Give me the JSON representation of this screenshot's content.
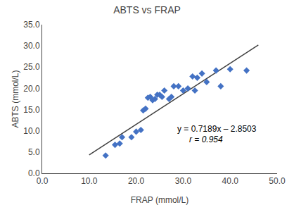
{
  "chart_data": {
    "type": "scatter",
    "title": "ABTS vs FRAP",
    "xlabel": "FRAP (mmol/L)",
    "ylabel": "ABTS (mmol/L)",
    "xlim": [
      0.0,
      50.0
    ],
    "ylim": [
      0.0,
      35.0
    ],
    "xticks": [
      {
        "value": 0,
        "label": "0.0"
      },
      {
        "value": 10,
        "label": "10.0"
      },
      {
        "value": 20,
        "label": "20.0"
      },
      {
        "value": 30,
        "label": "30.0"
      },
      {
        "value": 40,
        "label": "40.0"
      },
      {
        "value": 50,
        "label": "50.0"
      }
    ],
    "yticks": [
      {
        "value": 0,
        "label": "0.0"
      },
      {
        "value": 5,
        "label": "5.0"
      },
      {
        "value": 10,
        "label": "10.0"
      },
      {
        "value": 15,
        "label": "15.0"
      },
      {
        "value": 20,
        "label": "20.0"
      },
      {
        "value": 25,
        "label": "25.0"
      },
      {
        "value": 30,
        "label": "30.0"
      },
      {
        "value": 35,
        "label": "35.0"
      }
    ],
    "grid": false,
    "series": [
      {
        "type": "scatter",
        "color": "#4472C4",
        "marker": "diamond",
        "x": [
          13.5,
          15.5,
          16.5,
          17.0,
          19.0,
          20.0,
          21.0,
          21.5,
          22.0,
          22.5,
          23.0,
          23.5,
          24.0,
          24.5,
          25.0,
          25.5,
          26.0,
          27.0,
          27.5,
          28.0,
          29.0,
          30.0,
          31.0,
          32.0,
          32.5,
          33.0,
          34.0,
          35.0,
          37.0,
          38.0,
          40.0,
          43.5
        ],
        "values": [
          4.2,
          6.7,
          7.0,
          8.5,
          8.5,
          9.8,
          10.2,
          14.8,
          15.2,
          17.8,
          18.0,
          17.2,
          17.5,
          18.5,
          18.5,
          18.0,
          19.5,
          17.5,
          18.0,
          20.5,
          20.5,
          19.5,
          20.0,
          22.8,
          19.5,
          22.5,
          23.5,
          21.5,
          24.2,
          20.5,
          24.5,
          24.2
        ]
      },
      {
        "type": "line",
        "color": "#404040",
        "line_style": "solid",
        "x": [
          10.0,
          46.0
        ],
        "values": [
          4.3387,
          30.2191
        ]
      }
    ],
    "annotations": [
      "y = 0.7189x – 2.8503",
      "r = 0.954"
    ]
  }
}
